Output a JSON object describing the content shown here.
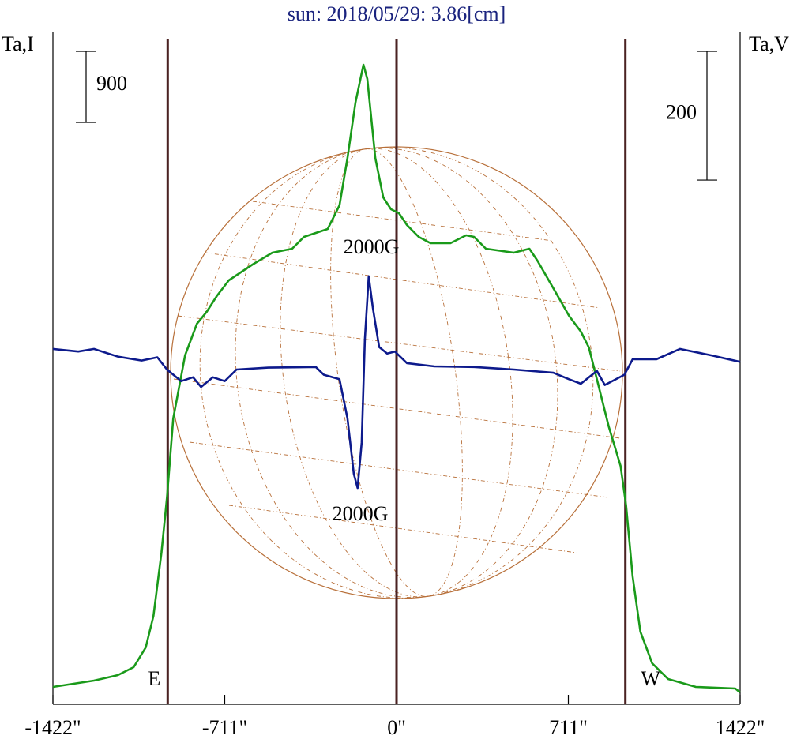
{
  "chart_data": {
    "type": "line",
    "title": "sun: 2018/05/29: 3.86[cm]",
    "ylabel": "Ta,I",
    "y2label": "Ta,V",
    "xlim": [
      -1422,
      1422
    ],
    "xticks": [
      {
        "value": -1422,
        "label": "-1422\""
      },
      {
        "value": -711,
        "label": "-711\""
      },
      {
        "value": 0,
        "label": "0\""
      },
      {
        "value": 711,
        "label": "711\""
      },
      {
        "value": 1422,
        "label": "1422\""
      }
    ],
    "ylim": [
      0,
      8520
    ],
    "y2lim": [
      -530,
      515
    ],
    "y_scale_bar": 900,
    "y2_scale_bar": 200,
    "vlines": [
      -947,
      0,
      947
    ],
    "limb_labels": [
      "E",
      "W"
    ],
    "annotations": [
      "2000G",
      "2000G"
    ],
    "series": [
      {
        "color": "#1a9a1a",
        "x": [
          -1422,
          -1252,
          -1153,
          -1088,
          -1038,
          -1006,
          -973,
          -950,
          -924,
          -875,
          -826,
          -786,
          -744,
          -694,
          -645,
          -596,
          -514,
          -432,
          -383,
          -334,
          -285,
          -236,
          -203,
          -170,
          -137,
          -121,
          -88,
          -55,
          -23,
          10,
          43,
          92,
          141,
          223,
          288,
          321,
          370,
          485,
          550,
          583,
          649,
          714,
          763,
          796,
          829,
          878,
          927,
          950,
          977,
          1009,
          1058,
          1124,
          1239,
          1402,
          1422
        ],
        "values": [
          220,
          300,
          370,
          470,
          720,
          1120,
          1920,
          2620,
          3620,
          4420,
          4820,
          4970,
          5170,
          5370,
          5470,
          5570,
          5720,
          5770,
          5920,
          5970,
          6020,
          6320,
          6920,
          7620,
          8100,
          7920,
          6920,
          6420,
          6270,
          6220,
          6070,
          5920,
          5840,
          5840,
          5940,
          5920,
          5770,
          5720,
          5770,
          5620,
          5270,
          4920,
          4720,
          4520,
          4120,
          3520,
          3020,
          2520,
          1620,
          920,
          520,
          320,
          220,
          200,
          150
        ]
      },
      {
        "color": "#0d1a8c",
        "axis": "y2",
        "x": [
          -1422,
          -1317,
          -1252,
          -1153,
          -1055,
          -990,
          -950,
          -891,
          -842,
          -809,
          -760,
          -711,
          -662,
          -531,
          -334,
          -301,
          -236,
          -203,
          -177,
          -161,
          -144,
          -131,
          -115,
          -98,
          -72,
          -39,
          -7,
          43,
          157,
          321,
          485,
          649,
          714,
          763,
          829,
          862,
          943,
          977,
          1075,
          1173,
          1304,
          1422
        ],
        "values": [
          22,
          18,
          22,
          10,
          4,
          9,
          -10,
          -28,
          -22,
          -37,
          -22,
          -28,
          -10,
          -7,
          -6,
          -18,
          -25,
          -86,
          -172,
          -194,
          -123,
          37,
          135,
          86,
          25,
          15,
          18,
          0,
          -5,
          -6,
          -10,
          -15,
          -25,
          -32,
          -12,
          -34,
          -18,
          6,
          6,
          22,
          12,
          2
        ]
      }
    ]
  }
}
